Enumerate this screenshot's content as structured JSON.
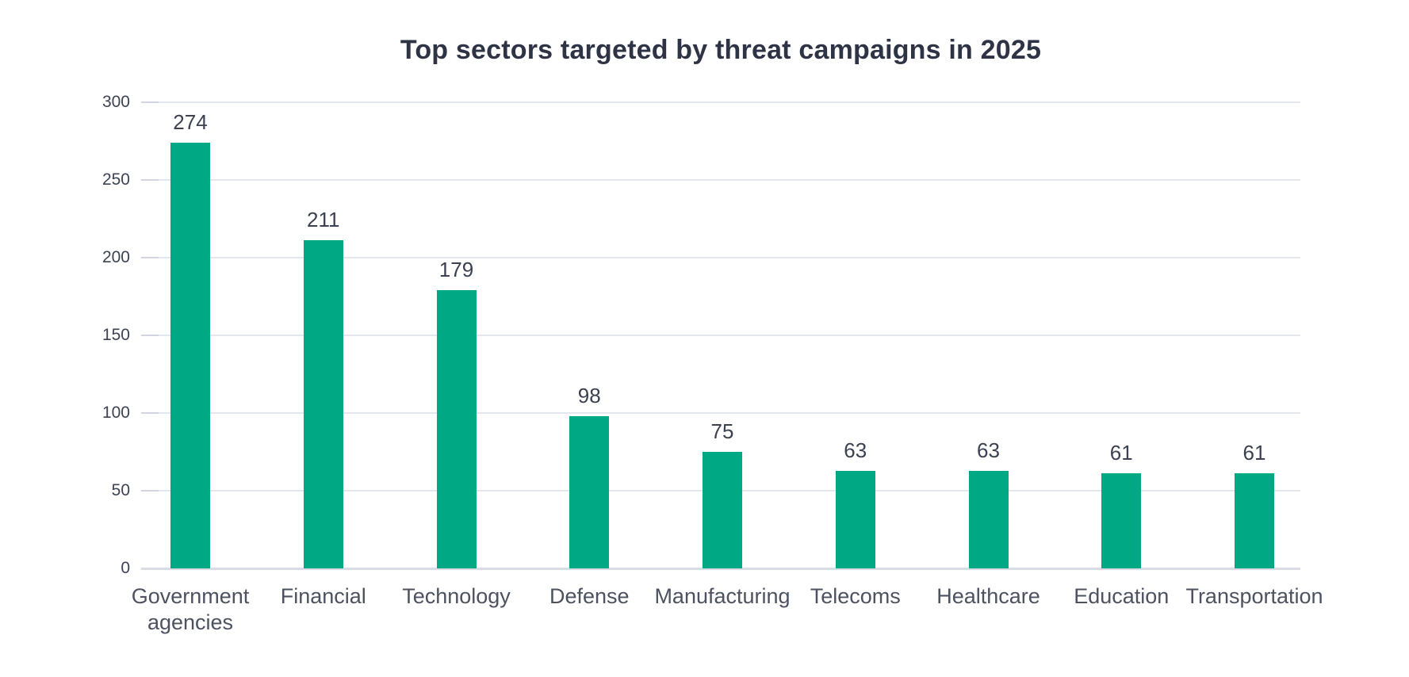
{
  "chart_data": {
    "type": "bar",
    "title": "Top sectors targeted by threat campaigns in 2025",
    "categories": [
      "Government agencies",
      "Financial",
      "Technology",
      "Defense",
      "Manufacturing",
      "Telecoms",
      "Healthcare",
      "Education",
      "Transportation"
    ],
    "values": [
      274,
      211,
      179,
      98,
      75,
      63,
      63,
      61,
      61
    ],
    "xlabel": "",
    "ylabel": "",
    "ylim": [
      0,
      300
    ],
    "yticks": [
      0,
      50,
      100,
      150,
      200,
      250,
      300
    ],
    "grid": true,
    "legend": "none",
    "value_labels_shown": true,
    "colors": {
      "bar": "#00A884",
      "title_text": "#2e3446",
      "axis_text": "#3d4354",
      "value_text": "#3b4150",
      "category_text": "#4d5260",
      "gridline": "#e5e7ef",
      "baseline": "#d9dce4",
      "background": "#ffffff"
    }
  }
}
